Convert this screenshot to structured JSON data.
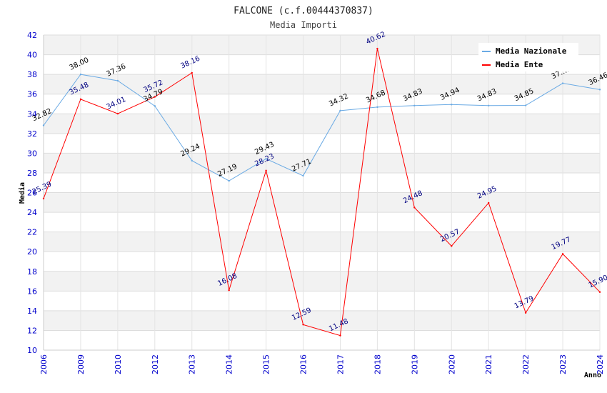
{
  "chart_data": {
    "type": "line",
    "title": "FALCONE (c.f.00444370837)",
    "subtitle": "Media Importi",
    "xlabel": "Anno",
    "ylabel": "Media",
    "ylim": [
      10,
      42
    ],
    "yticks": [
      10,
      12,
      14,
      16,
      18,
      20,
      22,
      24,
      26,
      28,
      30,
      32,
      34,
      36,
      38,
      40,
      42
    ],
    "categories": [
      "2006",
      "2009",
      "2010",
      "2012",
      "2013",
      "2014",
      "2015",
      "2016",
      "2017",
      "2018",
      "2019",
      "2020",
      "2021",
      "2022",
      "2023",
      "2024"
    ],
    "series": [
      {
        "name": "Media Nazionale",
        "color": "#6aaae4",
        "values": [
          32.82,
          38.0,
          37.36,
          34.79,
          29.24,
          27.19,
          29.43,
          27.71,
          34.32,
          34.68,
          34.83,
          34.94,
          34.83,
          34.85,
          37.1,
          36.46
        ],
        "labels": [
          "32.82",
          "38.00",
          "37.36",
          "34.79",
          "29.24",
          "27.19",
          "29.43",
          "27.71",
          "34.32",
          "34.68",
          "34.83",
          "34.94",
          "34.83",
          "34.85",
          "37.…",
          "36.46"
        ]
      },
      {
        "name": "Media Ente",
        "color": "#ff0000",
        "values": [
          25.39,
          35.48,
          34.01,
          35.72,
          38.16,
          16.08,
          28.23,
          12.59,
          11.48,
          40.62,
          24.48,
          20.57,
          24.95,
          13.79,
          19.77,
          15.9
        ],
        "labels": [
          "25.39",
          "35.48",
          "34.01",
          "35.72",
          "38.16",
          "16.08",
          "28.23",
          "12.59",
          "11.48",
          "40.62",
          "24.48",
          "20.57",
          "24.95",
          "13.79",
          "19.77",
          "15.90"
        ]
      }
    ],
    "legend_position": "top-right",
    "grid": true
  }
}
